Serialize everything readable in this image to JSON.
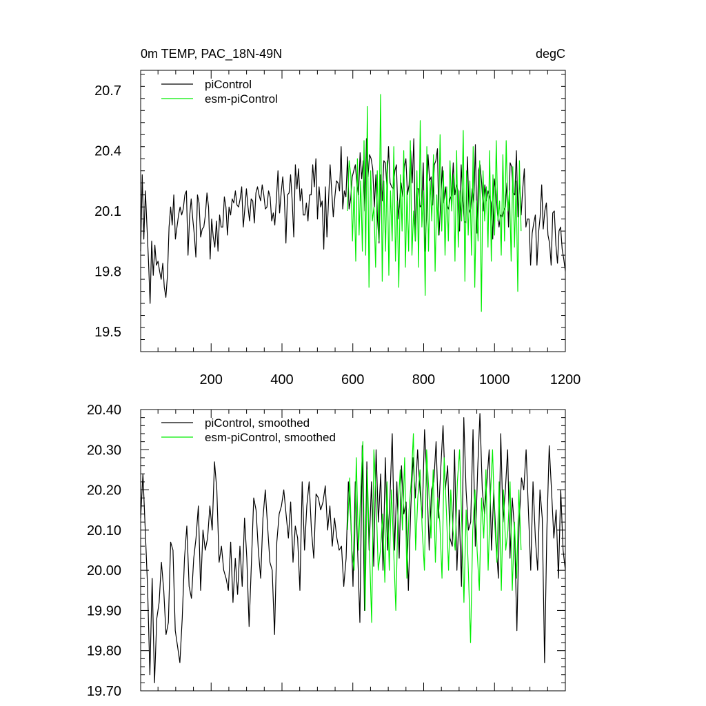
{
  "colors": {
    "picontrol": "#000000",
    "esm_picontrol": "#00ee00"
  },
  "chart_data": [
    {
      "type": "line",
      "title": "0m TEMP, PAC_18N-49N",
      "units": "degC",
      "xlim": [
        1,
        1200
      ],
      "ylim": [
        19.4,
        20.8
      ],
      "xticks": [
        "200",
        "400",
        "600",
        "800",
        "1000",
        "1200"
      ],
      "yticks": [
        "19.5",
        "19.8",
        "20.1",
        "20.4",
        "20.7"
      ],
      "legend_position": "top-left",
      "series": [
        {
          "name": "piControl",
          "x_start": 1,
          "x_end": 1200,
          "values": [
            19.9,
            20.28,
            19.96,
            20.2,
            20.02,
            19.85,
            19.64,
            19.95,
            19.78,
            19.93,
            19.83,
            19.85,
            19.8,
            19.76,
            19.84,
            19.72,
            19.67,
            19.78,
            20.02,
            20.12,
            20.03,
            20.18,
            19.96,
            20.02,
            20.08,
            20.12,
            20.08,
            20.11,
            20.18,
            20.2,
            19.88,
            20.07,
            20.16,
            20.06,
            19.98,
            19.87,
            20.18,
            20.14,
            19.97,
            20.01,
            20.02,
            20.08,
            20.19,
            20.12,
            19.86,
            20.06,
            19.97,
            19.92,
            20.05,
            19.9,
            20.08,
            20.02,
            20.02,
            20.17,
            20.12,
            19.98,
            20.12,
            20.08,
            20.16,
            20.14,
            20.2,
            20.13,
            20.12,
            20.16,
            20.22,
            20.02,
            20.11,
            20.21,
            20.12,
            20.05,
            20.16,
            20.15,
            20.04,
            20.19,
            20.22,
            20.18,
            20.15,
            20.23,
            20.18,
            20.11,
            20.12,
            20.2,
            20.17,
            20.05,
            20.09,
            20.03,
            20.16,
            20.3,
            20.09,
            20.19,
            20.27,
            20.17,
            19.94,
            20.18,
            20.19,
            20.28,
            20.15,
            19.97,
            20.33,
            20.21,
            20.31,
            20.15,
            20.21,
            20.08,
            20.08,
            20.14,
            20.05,
            20.18,
            20.18,
            20.33,
            20.22,
            20.36,
            20.06,
            20.22,
            20.12,
            20.15,
            19.91,
            20.22,
            19.97,
            20.15,
            20.33,
            20.2,
            20.07,
            20.17,
            20.25,
            20.24,
            20.2,
            20.42,
            20.11,
            20.2,
            20.17,
            20.37,
            20.11,
            20.16,
            20.27,
            20.3,
            20.33,
            20.23,
            20.18,
            20.39,
            20.26,
            20.35,
            20.1,
            20.46,
            20.27,
            20.38,
            20.36,
            20.31,
            20.12,
            20.28,
            20.06,
            19.94,
            20.28,
            20.15,
            20.35,
            20.34,
            20.22,
            20.42,
            20.24,
            20.22,
            20.21,
            20.3,
            20.33,
            20.06,
            20.15,
            20.24,
            20.17,
            20.32,
            20.36,
            20.18,
            20.23,
            20.4,
            20.24,
            20.46,
            19.95,
            20.21,
            20.21,
            20.12,
            20.13,
            20.34,
            19.9,
            20.06,
            20.38,
            20.25,
            20.27,
            20.13,
            20.33,
            20.35,
            20.41,
            19.98,
            20.14,
            20.32,
            20.14,
            20.22,
            20.13,
            20.11,
            20.16,
            20.18,
            20.34,
            20.18,
            20.23,
            20.2,
            20.0,
            20.33,
            20.16,
            20.05,
            20.04,
            20.37,
            20.09,
            20.11,
            20.21,
            20.14,
            20.43,
            19.99,
            20.3,
            20.33,
            20.24,
            20.1,
            20.23,
            20.15,
            20.2,
            20.17,
            20.14,
            19.96,
            20.26,
            20.2,
            20.09,
            20.02,
            20.08,
            20.07,
            20.1,
            20.12,
            20.24,
            20.02,
            20.34,
            20.32,
            20.19,
            20.18,
            20.4,
            20.07,
            20.26,
            20.08,
            20.21,
            20.31,
            20.02,
            20.06,
            20.06,
            19.83,
            19.99,
            20.04,
            20.08,
            19.83,
            19.99,
            20.07,
            20.23,
            20.01,
            20.1,
            20.14,
            19.98,
            19.94,
            19.83,
            20.09,
            20.1,
            19.93,
            19.84,
            20.0,
            20.02,
            19.91,
            19.86,
            19.8
          ],
          "note": ""
        },
        {
          "name": "esm-piControl",
          "x_start": 585,
          "x_end": 1075,
          "values": [
            20.1,
            20.35,
            20.28,
            19.95,
            20.22,
            19.85,
            20.36,
            19.98,
            20.25,
            19.9,
            20.45,
            19.88,
            20.62,
            19.72,
            20.3,
            20.05,
            20.12,
            19.82,
            20.3,
            19.95,
            20.68,
            19.75,
            20.25,
            19.9,
            20.35,
            19.78,
            20.2,
            19.95,
            20.42,
            19.85,
            20.15,
            19.72,
            20.28,
            20.0,
            20.4,
            19.82,
            20.2,
            19.9,
            20.45,
            19.88,
            20.1,
            19.95,
            20.3,
            19.82,
            20.55,
            20.02,
            20.2,
            19.68,
            20.42,
            19.9,
            20.25,
            20.05,
            20.38,
            19.8,
            20.18,
            19.98,
            20.48,
            20.0,
            20.3,
            19.88,
            20.22,
            19.95,
            20.35,
            20.1,
            20.28,
            19.85,
            20.4,
            19.92,
            20.2,
            20.05,
            20.5,
            19.75,
            20.3,
            19.98,
            20.25,
            19.88,
            20.42,
            19.72,
            20.15,
            19.95,
            20.35,
            19.6,
            20.3,
            20.05,
            20.22,
            19.92,
            20.4,
            19.85,
            20.28,
            19.98,
            20.45,
            20.05,
            20.15,
            19.88,
            20.38,
            19.95,
            20.45,
            20.1,
            20.2,
            19.85,
            20.32,
            19.92,
            20.25,
            19.7,
            20.35,
            20.0
          ],
          "note": ""
        }
      ]
    },
    {
      "type": "line",
      "xlim": [
        1,
        1200
      ],
      "ylim": [
        19.7,
        20.4
      ],
      "yticks": [
        "19.70",
        "19.80",
        "19.90",
        "20.00",
        "20.10",
        "20.20",
        "20.30",
        "20.40"
      ],
      "legend_position": "top-left",
      "series": [
        {
          "name": "piControl, smoothed",
          "x_start": 1,
          "x_end": 1200,
          "values": [
            20.13,
            20.24,
            20.1,
            19.96,
            19.74,
            19.98,
            19.72,
            19.88,
            19.92,
            20.02,
            19.95,
            19.84,
            19.87,
            20.07,
            20.05,
            19.85,
            19.81,
            19.77,
            19.88,
            20.03,
            20.11,
            19.96,
            19.93,
            20.03,
            20.08,
            20.16,
            19.95,
            20.1,
            20.05,
            20.08,
            20.16,
            20.1,
            20.27,
            20.2,
            20.02,
            20.06,
            20.0,
            19.98,
            19.95,
            20.07,
            19.92,
            20.03,
            19.94,
            20.06,
            19.96,
            20.13,
            20.03,
            19.86,
            20.02,
            20.18,
            20.15,
            20.05,
            19.98,
            20.13,
            20.2,
            20.11,
            20.02,
            20.0,
            19.84,
            20.07,
            20.14,
            20.16,
            20.2,
            20.14,
            20.08,
            20.17,
            20.02,
            20.11,
            20.08,
            19.95,
            20.22,
            20.05,
            20.16,
            20.22,
            20.1,
            20.03,
            20.19,
            20.18,
            20.15,
            20.17,
            20.21,
            20.1,
            20.16,
            20.06,
            20.13,
            20.08,
            20.05,
            20.06,
            19.96,
            20.03,
            20.22,
            20.13,
            19.96,
            20.22,
            20.05,
            19.87,
            20.31,
            19.9,
            20.27,
            20.05,
            20.22,
            20.01,
            20.3,
            20.12,
            20.24,
            20.0,
            20.28,
            20.05,
            20.18,
            20.34,
            20.05,
            20.22,
            20.03,
            20.26,
            20.14,
            20.17,
            19.95,
            20.15,
            20.28,
            20.18,
            20.3,
            20.2,
            20.13,
            20.35,
            20.23,
            20.05,
            20.2,
            20.22,
            20.32,
            20.13,
            20.25,
            20.36,
            20.2,
            20.26,
            20.08,
            20.06,
            20.3,
            20.0,
            20.15,
            19.96,
            20.38,
            20.2,
            20.1,
            20.12,
            20.35,
            20.06,
            20.25,
            20.39,
            20.2,
            20.14,
            20.22,
            20.3,
            20.05,
            20.2,
            20.07,
            19.98,
            20.34,
            20.12,
            20.2,
            20.3,
            20.03,
            20.18,
            20.1,
            19.85,
            20.12,
            20.23,
            20.2,
            20.3,
            20.15,
            20.0,
            20.22,
            20.08,
            20.0,
            20.2,
            20.13,
            19.77,
            20.1,
            20.31,
            20.2,
            20.08,
            20.15,
            19.98,
            20.2,
            20.05,
            20.0
          ],
          "note": ""
        },
        {
          "name": "esm-piControl, smoothed",
          "x_start": 585,
          "x_end": 1075,
          "values": [
            20.1,
            20.23,
            20.05,
            20.0,
            20.28,
            20.05,
            20.2,
            20.32,
            19.9,
            20.25,
            20.05,
            19.87,
            20.3,
            20.18,
            20.0,
            20.05,
            20.14,
            19.97,
            20.22,
            20.0,
            20.2,
            20.05,
            19.9,
            20.15,
            20.25,
            20.1,
            20.28,
            19.98,
            20.15,
            20.22,
            20.34,
            20.05,
            20.18,
            20.25,
            20.1,
            20.0,
            20.3,
            20.2,
            20.08,
            20.25,
            20.02,
            20.18,
            20.12,
            19.98,
            20.28,
            20.15,
            20.0,
            20.2,
            20.1,
            20.05,
            20.22,
            20.3,
            20.12,
            19.92,
            20.15,
            20.0,
            19.82,
            20.1,
            20.2,
            20.05,
            19.95,
            20.18,
            20.08,
            20.25,
            20.0,
            20.18,
            20.3,
            20.12,
            20.02,
            20.22,
            19.95,
            20.2,
            20.05,
            20.1,
            20.22,
            19.95,
            20.12,
            19.98,
            20.2,
            20.05
          ],
          "note": ""
        }
      ]
    }
  ]
}
